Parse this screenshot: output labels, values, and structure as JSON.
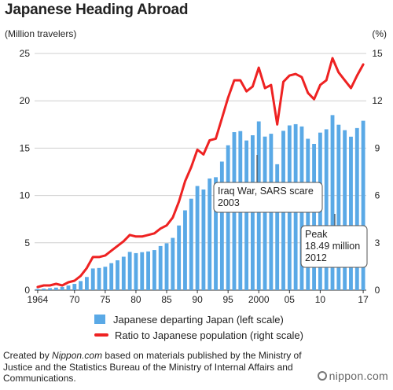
{
  "title": "Japanese Heading Abroad",
  "left_unit": "(Million travelers)",
  "right_unit": "(%)",
  "chart_data": {
    "type": "bar",
    "x": [
      1964,
      1965,
      1966,
      1967,
      1968,
      1969,
      1970,
      1971,
      1972,
      1973,
      1974,
      1975,
      1976,
      1977,
      1978,
      1979,
      1980,
      1981,
      1982,
      1983,
      1984,
      1985,
      1986,
      1987,
      1988,
      1989,
      1990,
      1991,
      1992,
      1993,
      1994,
      1995,
      1996,
      1997,
      1998,
      1999,
      2000,
      2001,
      2002,
      2003,
      2004,
      2005,
      2006,
      2007,
      2008,
      2009,
      2010,
      2011,
      2012,
      2013,
      2014,
      2015,
      2016,
      2017
    ],
    "x_tick_labels": [
      {
        "year": 1964,
        "label": "1964"
      },
      {
        "year": 1970,
        "label": "70"
      },
      {
        "year": 1975,
        "label": "75"
      },
      {
        "year": 1980,
        "label": "80"
      },
      {
        "year": 1985,
        "label": "85"
      },
      {
        "year": 1990,
        "label": "90"
      },
      {
        "year": 1995,
        "label": "95"
      },
      {
        "year": 2000,
        "label": "2000"
      },
      {
        "year": 2005,
        "label": "05"
      },
      {
        "year": 2010,
        "label": "10"
      },
      {
        "year": 2017,
        "label": "17"
      }
    ],
    "series": [
      {
        "name": "Japanese departing Japan (left scale)",
        "type": "bar",
        "axis": "left",
        "color": "#5aa9e6",
        "values": [
          0.13,
          0.16,
          0.21,
          0.27,
          0.34,
          0.49,
          0.66,
          0.96,
          1.39,
          2.29,
          2.34,
          2.47,
          2.85,
          3.15,
          3.53,
          4.04,
          3.91,
          4.01,
          4.09,
          4.23,
          4.66,
          4.95,
          5.52,
          6.83,
          8.43,
          9.66,
          11.0,
          10.63,
          11.79,
          11.93,
          13.58,
          15.3,
          16.69,
          16.8,
          15.81,
          16.36,
          17.82,
          16.22,
          16.52,
          13.3,
          16.83,
          17.4,
          17.53,
          17.29,
          15.99,
          15.45,
          16.64,
          16.99,
          18.49,
          17.47,
          16.9,
          16.21,
          17.12,
          17.89
        ]
      },
      {
        "name": "Ratio to Japanese population (right scale)",
        "type": "line",
        "axis": "right",
        "color": "#ee2222",
        "values": [
          0.2,
          0.3,
          0.3,
          0.4,
          0.3,
          0.5,
          0.6,
          0.9,
          1.4,
          2.1,
          2.1,
          2.2,
          2.5,
          2.8,
          3.1,
          3.5,
          3.4,
          3.4,
          3.5,
          3.6,
          3.9,
          4.1,
          4.6,
          5.6,
          6.9,
          7.8,
          8.9,
          8.6,
          9.5,
          9.6,
          10.9,
          12.2,
          13.3,
          13.3,
          12.6,
          12.9,
          14.1,
          12.8,
          13.0,
          10.5,
          13.2,
          13.6,
          13.7,
          13.5,
          12.5,
          12.1,
          13.0,
          13.3,
          14.7,
          13.8,
          13.3,
          12.8,
          13.6,
          14.3
        ]
      }
    ],
    "ylim_left": [
      0,
      25
    ],
    "ylim_right": [
      0,
      15
    ],
    "left_ticks": [
      "0",
      "5",
      "10",
      "15",
      "20",
      "25"
    ],
    "right_ticks": [
      "0",
      "3",
      "6",
      "9",
      "12",
      "15"
    ],
    "grid": true,
    "annotations": [
      {
        "year": 2003,
        "lines": [
          "Iraq War, SARS scare",
          "2003"
        ]
      },
      {
        "year": 2012,
        "lines": [
          "Peak",
          "18.49 million",
          "2012"
        ]
      }
    ]
  },
  "footer": {
    "prefix": "Created by ",
    "source_site": "Nippon.com",
    "suffix": " based on materials published by the Ministry of Justice and the Statistics Bureau of the Ministry of Internal Affairs and Communications."
  },
  "logo_text": "nippon.com",
  "colors": {
    "bar": "#5aa9e6",
    "line": "#ee2222",
    "grid": "#cfcfcf",
    "text": "#222222"
  }
}
